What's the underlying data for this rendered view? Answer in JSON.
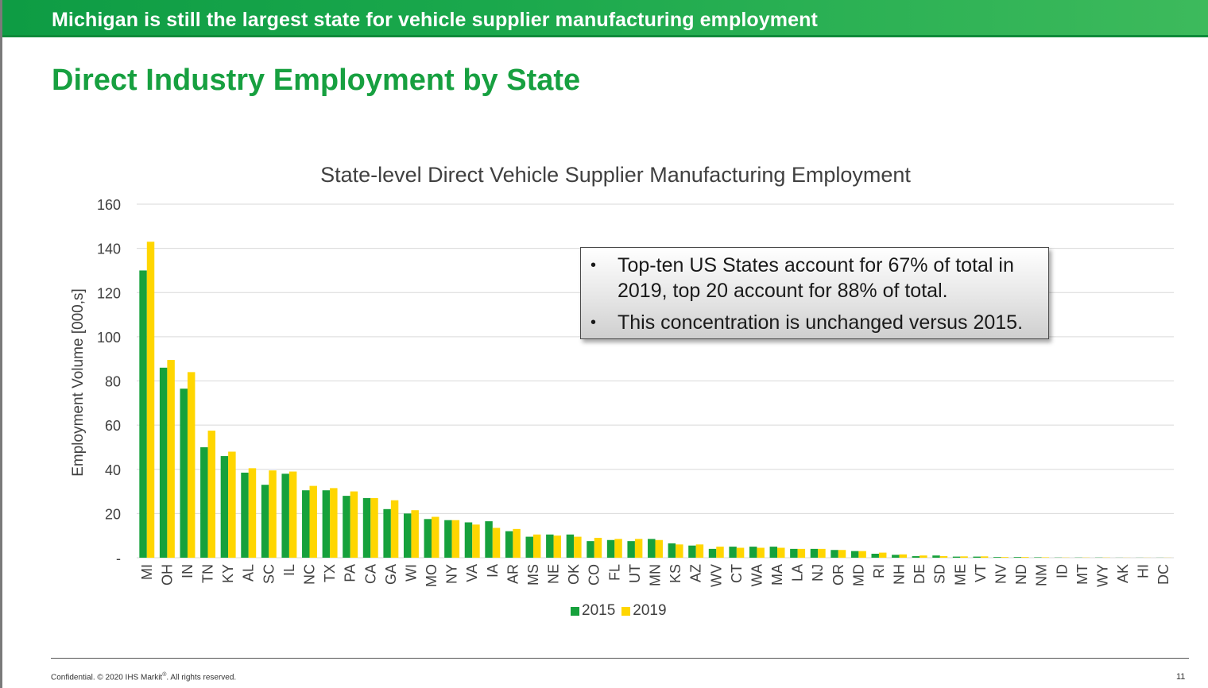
{
  "banner": {
    "title": "Michigan is still the largest state for vehicle supplier manufacturing employment"
  },
  "slide": {
    "title": "Direct Industry Employment by State"
  },
  "colors": {
    "banner_green": "#1aa84c",
    "title_green": "#17a040",
    "series_2015": "#16a13c",
    "series_2019": "#ffd600"
  },
  "callout": {
    "items": [
      "Top-ten US States account for 67% of total in 2019, top 20 account for 88% of total.",
      "This concentration is unchanged versus 2015."
    ]
  },
  "footer": {
    "confidential_prefix": "Confidential. © 2020 IHS Markit",
    "registered_mark": "®",
    "confidential_suffix": ". All rights reserved.",
    "page_number": "11"
  },
  "chart_data": {
    "type": "bar",
    "title": "State-level Direct Vehicle Supplier Manufacturing Employment",
    "ylabel": "Employment Volume [000,s]",
    "xlabel": "",
    "ylim": [
      0,
      160
    ],
    "yticks": [
      0,
      20,
      40,
      60,
      80,
      100,
      120,
      140,
      160
    ],
    "ytick_labels": [
      "-",
      "20",
      "40",
      "60",
      "80",
      "100",
      "120",
      "140",
      "160"
    ],
    "grid": true,
    "legend": "bottom",
    "categories": [
      "MI",
      "OH",
      "IN",
      "TN",
      "KY",
      "AL",
      "SC",
      "IL",
      "NC",
      "TX",
      "PA",
      "CA",
      "GA",
      "WI",
      "MO",
      "NY",
      "VA",
      "IA",
      "AR",
      "MS",
      "NE",
      "OK",
      "CO",
      "FL",
      "UT",
      "MN",
      "KS",
      "AZ",
      "WV",
      "CT",
      "WA",
      "MA",
      "LA",
      "NJ",
      "OR",
      "MD",
      "RI",
      "NH",
      "DE",
      "SD",
      "ME",
      "VT",
      "NV",
      "ND",
      "NM",
      "ID",
      "MT",
      "WY",
      "AK",
      "HI",
      "DC"
    ],
    "series": [
      {
        "name": "2015",
        "color": "#16a13c",
        "values": [
          130,
          86,
          76.5,
          50,
          46,
          38.5,
          33,
          38,
          30.5,
          30.5,
          28,
          27,
          22,
          20,
          17.5,
          17,
          16,
          16.5,
          12,
          9.5,
          10.5,
          10.5,
          7.5,
          8,
          7.5,
          8.5,
          6.5,
          5.5,
          4,
          5,
          5,
          5,
          4,
          4,
          3.5,
          3,
          1.8,
          1.3,
          0.7,
          1,
          0.5,
          0.5,
          0.3,
          0.3,
          0.2,
          0.1,
          0.1,
          0.1,
          0.05,
          0.05,
          0.05
        ]
      },
      {
        "name": "2019",
        "color": "#ffd600",
        "values": [
          143,
          89.5,
          84,
          57.5,
          48,
          40.5,
          39.5,
          39,
          32.5,
          31.5,
          30,
          27,
          26,
          21.5,
          18.5,
          17,
          15,
          13.5,
          13,
          10.5,
          10,
          9.5,
          9,
          8.5,
          8.5,
          8,
          6,
          6,
          5,
          4.5,
          4.5,
          4.5,
          4,
          4,
          3.5,
          3,
          2.3,
          1.5,
          1,
          0.7,
          0.6,
          0.6,
          0.3,
          0.3,
          0.2,
          0.1,
          0.1,
          0.1,
          0.05,
          0.05,
          0.05
        ]
      }
    ]
  }
}
